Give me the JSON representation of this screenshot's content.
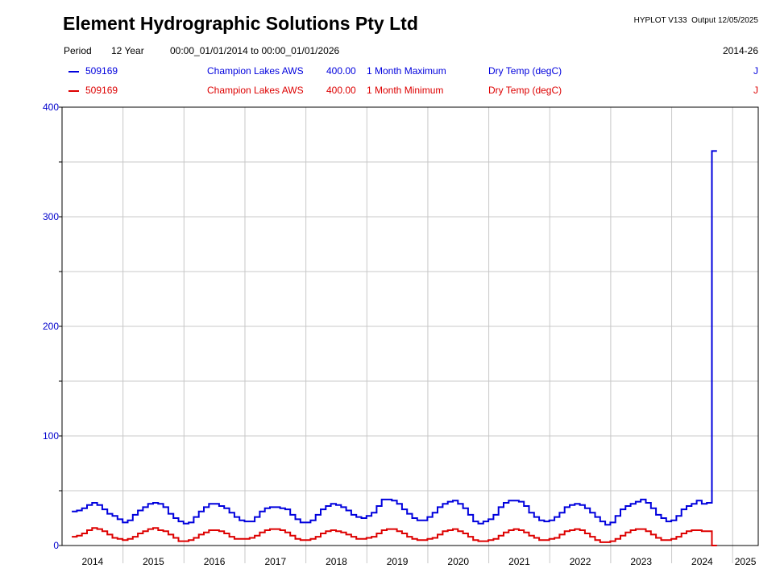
{
  "header": {
    "company": "Element Hydrographic Solutions Pty Ltd",
    "version_output": "HYPLOT V133  Output 12/05/2025",
    "period_label": "Period",
    "period_value": "12 Year",
    "date_range": "00:00_01/01/2014 to 00:00_01/01/2026",
    "range_code": "2014-26"
  },
  "legend": [
    {
      "site": "509169",
      "station": "Champion Lakes AWS",
      "varnum": "400.00",
      "stat": "1 Month Maximum",
      "variable": "Dry Temp (degC)",
      "flag": "J",
      "color": "#0000dd"
    },
    {
      "site": "509169",
      "station": "Champion Lakes AWS",
      "varnum": "400.00",
      "stat": "1 Month Minimum",
      "variable": "Dry Temp (degC)",
      "flag": "J",
      "color": "#dd0000"
    }
  ],
  "chart_data": {
    "type": "line",
    "step": true,
    "grid": true,
    "ylim": [
      0,
      400
    ],
    "yticks": [
      0,
      100,
      200,
      300,
      400
    ],
    "xlim": [
      2014.0,
      2025.42
    ],
    "xtick_labels": [
      "2014",
      "2015",
      "2016",
      "2017",
      "2018",
      "2019",
      "2020",
      "2021",
      "2022",
      "2023",
      "2024",
      "2025"
    ],
    "axis_color": "#0000cc",
    "series": [
      {
        "name": "1 Month Maximum",
        "color": "#0000dd",
        "x_start": 2014.16,
        "months_per_point": 1,
        "values": [
          31,
          32,
          34,
          37,
          39,
          37,
          33,
          29,
          27,
          24,
          21,
          23,
          28,
          32,
          35,
          38,
          39,
          38,
          35,
          29,
          25,
          22,
          20,
          21,
          26,
          31,
          35,
          38,
          38,
          36,
          34,
          30,
          26,
          23,
          22,
          22,
          26,
          31,
          34,
          35,
          35,
          34,
          33,
          28,
          24,
          21,
          21,
          23,
          28,
          33,
          36,
          38,
          37,
          35,
          32,
          28,
          26,
          25,
          27,
          30,
          36,
          42,
          42,
          41,
          38,
          33,
          29,
          25,
          23,
          23,
          26,
          30,
          35,
          38,
          40,
          41,
          38,
          34,
          28,
          22,
          20,
          22,
          24,
          28,
          35,
          39,
          41,
          41,
          40,
          36,
          30,
          26,
          23,
          22,
          23,
          26,
          30,
          35,
          37,
          38,
          37,
          34,
          30,
          26,
          22,
          19,
          21,
          27,
          33,
          36,
          38,
          40,
          42,
          39,
          34,
          28,
          25,
          22,
          23,
          27,
          33,
          36,
          38,
          41,
          38,
          39,
          360
        ]
      },
      {
        "name": "1 Month Minimum",
        "color": "#dd0000",
        "x_start": 2014.16,
        "months_per_point": 1,
        "values": [
          8,
          9,
          11,
          14,
          16,
          15,
          13,
          10,
          7,
          6,
          5,
          6,
          8,
          11,
          13,
          15,
          16,
          14,
          13,
          10,
          7,
          4,
          4,
          5,
          7,
          10,
          12,
          14,
          14,
          13,
          11,
          8,
          6,
          6,
          6,
          7,
          9,
          12,
          14,
          15,
          15,
          14,
          12,
          9,
          6,
          5,
          5,
          6,
          8,
          11,
          13,
          14,
          13,
          12,
          10,
          8,
          6,
          6,
          7,
          8,
          11,
          14,
          15,
          15,
          13,
          11,
          8,
          6,
          5,
          5,
          6,
          7,
          10,
          13,
          14,
          15,
          13,
          11,
          8,
          5,
          4,
          4,
          5,
          6,
          9,
          12,
          14,
          15,
          14,
          12,
          9,
          7,
          5,
          5,
          6,
          7,
          10,
          13,
          14,
          15,
          14,
          11,
          8,
          5,
          3,
          3,
          4,
          6,
          9,
          12,
          14,
          15,
          15,
          13,
          10,
          7,
          5,
          5,
          6,
          8,
          11,
          13,
          14,
          14,
          13,
          13,
          0
        ]
      }
    ]
  }
}
